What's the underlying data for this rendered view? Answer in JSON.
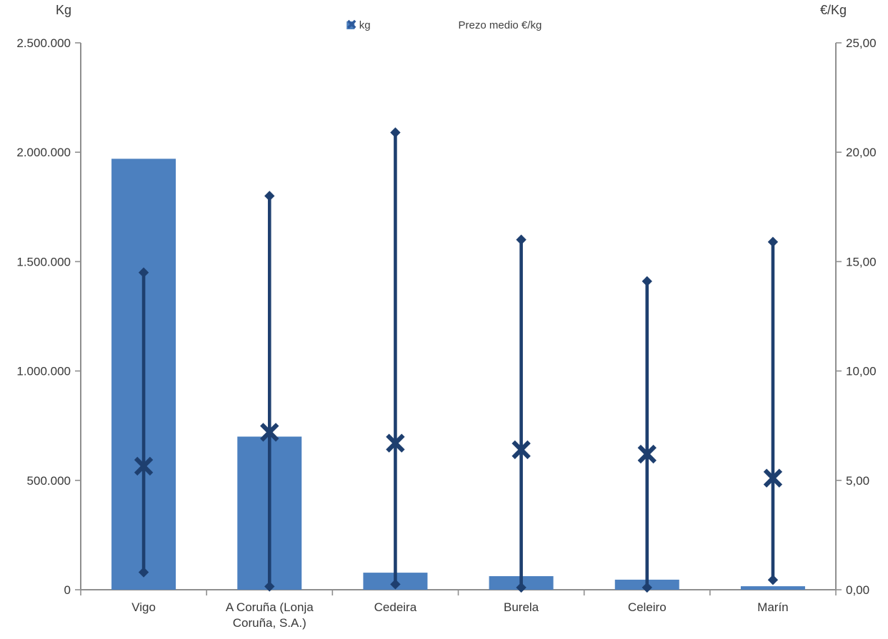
{
  "chart_data": {
    "type": "bar",
    "subtype": "dual-axis column chart with high/low/average price whisker markers",
    "grid": "off",
    "legend_position": "top-center",
    "categories": [
      "Vigo",
      "A Coruña (Lonja Coruña, S.A.)",
      "Cedeira",
      "Burela",
      "Celeiro",
      "Marín"
    ],
    "category_label_lines": [
      [
        "Vigo"
      ],
      [
        "A Coruña (Lonja",
        "Coruña, S.A.)"
      ],
      [
        "Cedeira"
      ],
      [
        "Burela"
      ],
      [
        "Celeiro"
      ],
      [
        "Marín"
      ]
    ],
    "left_axis": {
      "title": "Kg",
      "min": 0,
      "max": 2500000,
      "tick_values": [
        0,
        500000,
        1000000,
        1500000,
        2000000,
        2500000
      ],
      "tick_labels": [
        "0",
        "500.000",
        "1.000.000",
        "1.500.000",
        "2.000.000",
        "2.500.000"
      ]
    },
    "right_axis": {
      "title": "€/Kg",
      "min": 0,
      "max": 25,
      "tick_values": [
        0,
        5,
        10,
        15,
        20,
        25
      ],
      "tick_labels": [
        "0,00",
        "5,00",
        "10,00",
        "15,00",
        "20,00",
        "25,00"
      ]
    },
    "legend": {
      "items": [
        {
          "label": "kg",
          "marker": "square",
          "color": "#4C80BF"
        },
        {
          "label": "Prezo medio €/kg",
          "marker": "x",
          "color": "#2E5A9C"
        }
      ]
    },
    "colors": {
      "bar": "#4C80BF",
      "marker_line": "#1E3F6F",
      "axis": "#8f8f8f"
    },
    "series": [
      {
        "key": "kg",
        "plot": "column",
        "axis": "left",
        "values": [
          1970000,
          700000,
          78000,
          62000,
          46000,
          16000
        ]
      },
      {
        "key": "prezo_medio_eur_kg",
        "plot": "x-marker",
        "axis": "right",
        "values": [
          5.65,
          7.2,
          6.7,
          6.4,
          6.2,
          5.1
        ]
      },
      {
        "key": "prezo_max_eur_kg",
        "plot": "diamond-marker-high",
        "axis": "right",
        "values": [
          14.5,
          18.0,
          20.9,
          16.0,
          14.1,
          15.9
        ]
      },
      {
        "key": "prezo_min_eur_kg",
        "plot": "diamond-marker-low",
        "axis": "right",
        "values": [
          0.8,
          0.15,
          0.25,
          0.1,
          0.1,
          0.45
        ]
      }
    ]
  }
}
